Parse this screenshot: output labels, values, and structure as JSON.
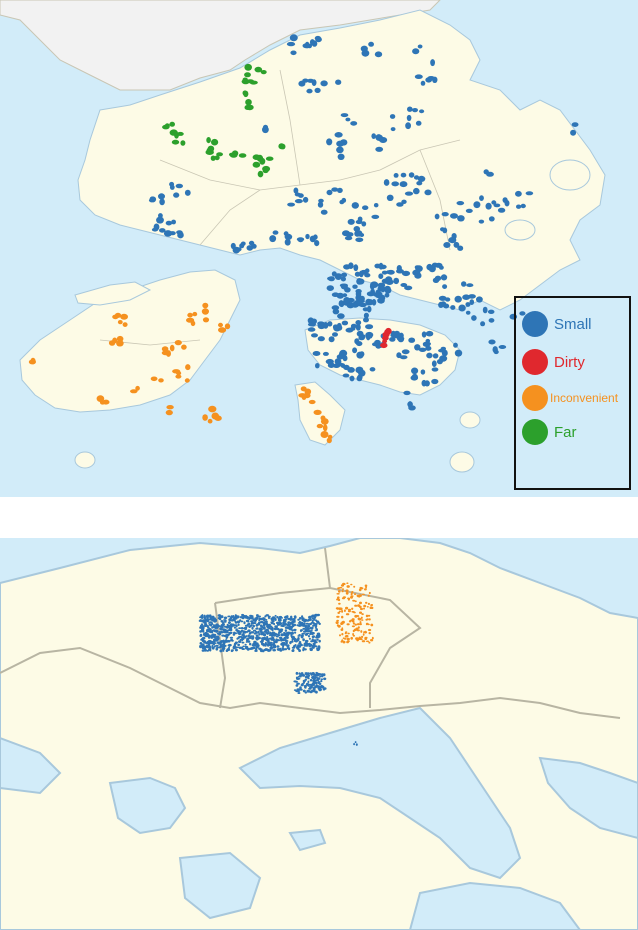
{
  "legend": {
    "items": [
      {
        "key": "small",
        "label": "Small",
        "color": "#2e75b6"
      },
      {
        "key": "dirty",
        "label": "Dirty",
        "color": "#e0282e"
      },
      {
        "key": "inconvenient",
        "label": "Inconvenient",
        "color": "#f5911f"
      },
      {
        "key": "far",
        "label": "Far",
        "color": "#2ca02c"
      }
    ]
  },
  "colors": {
    "sea": "#d2ecf9",
    "land": "#fdfbe6",
    "mainland": "#f2f2f2",
    "border": "#c9c6b4",
    "coast": "#a8c8dc"
  },
  "icons": [
    "circle-marker-icon"
  ]
}
